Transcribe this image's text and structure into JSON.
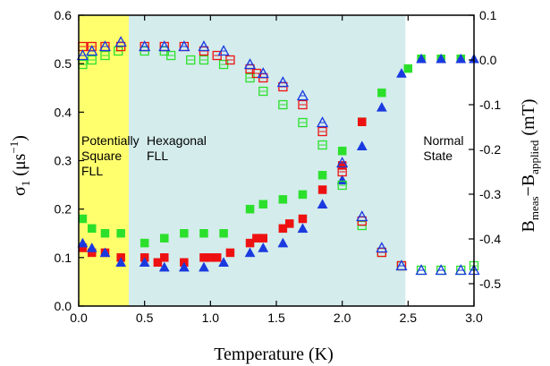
{
  "chart_data": {
    "type": "scatter",
    "xlabel": "Temperature (K)",
    "ylabel_left": "σ₁ (μs⁻¹)",
    "ylabel_right": "B_meas − B_applied (mT)",
    "xlim": [
      0.0,
      3.0
    ],
    "ylim_left": [
      0.0,
      0.6
    ],
    "ylim_right": [
      -0.55,
      0.1
    ],
    "x_ticks": [
      "0.0",
      "0.5",
      "1.0",
      "1.5",
      "2.0",
      "2.5",
      "3.0"
    ],
    "y_ticks_left": [
      "0.0",
      "0.1",
      "0.2",
      "0.3",
      "0.4",
      "0.5",
      "0.6"
    ],
    "y_ticks_right": [
      "-0.5",
      "-0.4",
      "-0.3",
      "-0.2",
      "-0.1",
      "0.0",
      "0.1"
    ],
    "regions": [
      {
        "label_lines": [
          "Potentially",
          "Square",
          "FLL"
        ],
        "x_range": [
          0.0,
          0.38
        ],
        "color": "#ffff6e"
      },
      {
        "label_lines": [
          "Hexagonal",
          "FLL"
        ],
        "x_range": [
          0.38,
          2.48
        ],
        "color": "#d4ecec"
      },
      {
        "label_lines": [
          "Normal",
          "State"
        ],
        "x_range": [
          2.48,
          3.0
        ],
        "color": "#ffffff"
      }
    ],
    "series": [
      {
        "axis": "left",
        "color": "#2be02b",
        "marker": "square",
        "filled": true,
        "x": [
          0.03,
          0.1,
          0.2,
          0.32,
          0.5,
          0.65,
          0.8,
          0.95,
          1.1,
          1.3,
          1.4,
          1.55,
          1.7,
          1.85,
          2.0,
          2.15,
          2.3,
          2.5,
          2.6,
          2.75,
          2.9
        ],
        "y": [
          0.18,
          0.16,
          0.15,
          0.15,
          0.13,
          0.14,
          0.15,
          0.15,
          0.15,
          0.2,
          0.21,
          0.22,
          0.23,
          0.27,
          0.32,
          0.38,
          0.44,
          0.49,
          0.51,
          0.51,
          0.51
        ]
      },
      {
        "axis": "left",
        "color": "#ee1111",
        "marker": "square",
        "filled": true,
        "x": [
          0.03,
          0.1,
          0.2,
          0.32,
          0.5,
          0.6,
          0.65,
          0.8,
          0.95,
          1.0,
          1.05,
          1.15,
          1.3,
          1.35,
          1.4,
          1.55,
          1.6,
          1.7,
          1.85,
          2.0,
          2.15
        ],
        "y": [
          0.12,
          0.11,
          0.11,
          0.1,
          0.1,
          0.09,
          0.1,
          0.09,
          0.1,
          0.1,
          0.1,
          0.11,
          0.13,
          0.14,
          0.14,
          0.16,
          0.17,
          0.18,
          0.24,
          0.29,
          0.38
        ]
      },
      {
        "axis": "left",
        "color": "#1a3ae0",
        "marker": "triangle",
        "filled": true,
        "x": [
          0.03,
          0.1,
          0.2,
          0.32,
          0.5,
          0.65,
          0.8,
          0.95,
          1.1,
          1.3,
          1.4,
          1.55,
          1.7,
          1.85,
          2.0,
          2.15,
          2.3,
          2.45,
          2.6,
          2.75,
          2.9,
          3.0
        ],
        "y": [
          0.13,
          0.12,
          0.11,
          0.09,
          0.09,
          0.08,
          0.08,
          0.08,
          0.09,
          0.11,
          0.12,
          0.13,
          0.16,
          0.21,
          0.26,
          0.33,
          0.41,
          0.48,
          0.51,
          0.51,
          0.51,
          0.51
        ]
      },
      {
        "axis": "right",
        "color": "#2be02b",
        "marker": "square",
        "filled": false,
        "x": [
          0.03,
          0.1,
          0.2,
          0.3,
          0.5,
          0.65,
          0.7,
          0.85,
          0.95,
          1.1,
          1.3,
          1.4,
          1.55,
          1.7,
          1.85,
          2.0,
          2.15,
          2.3,
          2.45,
          2.6,
          2.75,
          2.9,
          3.0
        ],
        "y": [
          -0.01,
          0.0,
          0.01,
          0.02,
          0.02,
          0.02,
          0.01,
          0.0,
          0.0,
          -0.01,
          -0.04,
          -0.07,
          -0.1,
          -0.14,
          -0.19,
          -0.28,
          -0.37,
          -0.43,
          -0.46,
          -0.47,
          -0.47,
          -0.47,
          -0.46
        ]
      },
      {
        "axis": "right",
        "color": "#ee1111",
        "marker": "square",
        "filled": false,
        "x": [
          0.03,
          0.1,
          0.2,
          0.32,
          0.5,
          0.65,
          0.8,
          0.95,
          1.05,
          1.15,
          1.3,
          1.35,
          1.4,
          1.55,
          1.7,
          1.85,
          2.0,
          2.15,
          2.3,
          2.45
        ],
        "y": [
          0.03,
          0.03,
          0.03,
          0.03,
          0.03,
          0.03,
          0.03,
          0.02,
          0.01,
          0.0,
          -0.02,
          -0.03,
          -0.04,
          -0.06,
          -0.1,
          -0.16,
          -0.25,
          -0.36,
          -0.43,
          -0.46
        ]
      },
      {
        "axis": "right",
        "color": "#1a3ae0",
        "marker": "triangle",
        "filled": false,
        "x": [
          0.03,
          0.1,
          0.2,
          0.32,
          0.5,
          0.65,
          0.8,
          0.95,
          1.1,
          1.3,
          1.4,
          1.55,
          1.7,
          1.85,
          2.0,
          2.15,
          2.3,
          2.45,
          2.6,
          2.75,
          2.9,
          3.0
        ],
        "y": [
          0.01,
          0.02,
          0.03,
          0.04,
          0.03,
          0.03,
          0.03,
          0.03,
          0.02,
          -0.01,
          -0.03,
          -0.05,
          -0.08,
          -0.14,
          -0.23,
          -0.35,
          -0.42,
          -0.46,
          -0.47,
          -0.47,
          -0.47,
          -0.47
        ]
      }
    ]
  }
}
